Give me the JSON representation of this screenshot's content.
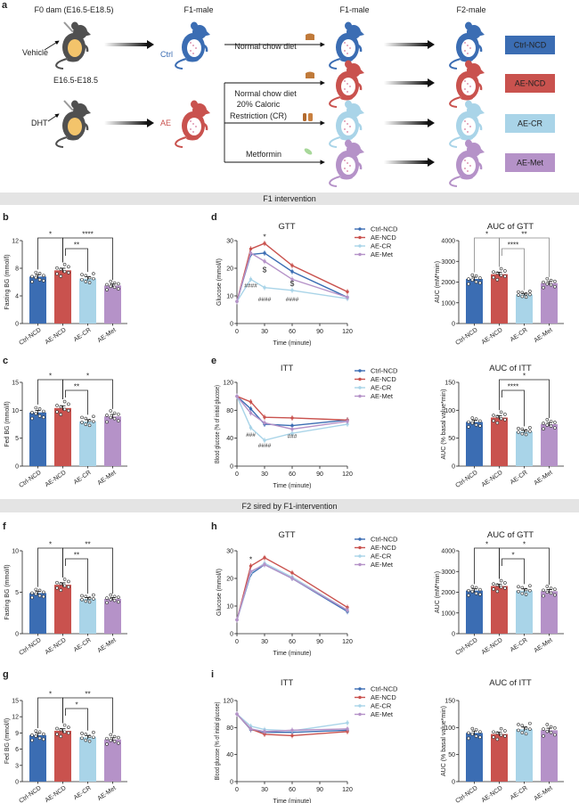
{
  "colors": {
    "Ctrl-NCD": "#3b6db3",
    "AE-NCD": "#c9524e",
    "AE-CR": "#a9d4e8",
    "AE-Met": "#b592c8",
    "F0": "#505050",
    "belly_F0": "#f3c46b"
  },
  "panel_a": {
    "letter": "a",
    "headers": [
      "F0 dam (E16.5-E18.5)",
      "F1-male",
      "F1-male",
      "F2-male"
    ],
    "vehicle": "Vehicle",
    "dht": "DHT",
    "window": "E16.5-E18.5",
    "ctrl": "Ctrl",
    "ae": "AE",
    "treatments": [
      "Normal chow diet",
      "Normal chow diet",
      "20% Caloric",
      "Restriction (CR)",
      "Metformin"
    ],
    "groups": [
      "Ctrl-NCD",
      "AE-NCD",
      "AE-CR",
      "AE-Met"
    ]
  },
  "bands": [
    "F1 intervention",
    "F2 sired by F1-intervention"
  ],
  "chart_data": [
    {
      "id": "b",
      "letter": "b",
      "type": "bar",
      "title": "",
      "ylabel": "Fasting BG (mmol/l)",
      "categories": [
        "Ctrl-NCD",
        "AE-NCD",
        "AE-CR",
        "AE-Met"
      ],
      "values": [
        6.8,
        7.7,
        6.5,
        5.5
      ],
      "ylim": [
        0,
        12
      ],
      "yticks": [
        0,
        4,
        8,
        12
      ],
      "sig_color": "#222",
      "sig": [
        [
          0,
          1,
          "*"
        ],
        [
          1,
          2,
          "**"
        ],
        [
          1,
          3,
          "****"
        ]
      ]
    },
    {
      "id": "d-gtt",
      "letter": "d",
      "type": "line",
      "title": "GTT",
      "xlabel": "Time (minute)",
      "ylabel": "Glucose (mmol/l)",
      "x": [
        0,
        15,
        30,
        60,
        120
      ],
      "xticks": [
        0,
        30,
        60,
        90,
        120
      ],
      "ylim": [
        0,
        30
      ],
      "yticks": [
        0,
        10,
        20,
        30
      ],
      "series": [
        {
          "name": "Ctrl-NCD",
          "values": [
            8,
            25,
            25.5,
            18.8,
            9.5
          ]
        },
        {
          "name": "AE-NCD",
          "values": [
            8,
            27,
            29,
            21,
            11.5
          ]
        },
        {
          "name": "AE-CR",
          "values": [
            8,
            16,
            13,
            12,
            9
          ]
        },
        {
          "name": "AE-Met",
          "values": [
            8,
            25.5,
            22.5,
            16,
            9.5
          ]
        }
      ],
      "annotations": [
        {
          "x": 30,
          "y": 30.5,
          "text": "*"
        },
        {
          "x": 30,
          "y": 18.5,
          "text": "$"
        },
        {
          "x": 60,
          "y": 13.5,
          "text": "$"
        },
        {
          "x": 15,
          "y": 13,
          "text": "####"
        },
        {
          "x": 30,
          "y": 8,
          "text": "####"
        },
        {
          "x": 60,
          "y": 8,
          "text": "####"
        }
      ]
    },
    {
      "id": "d-auc",
      "type": "bar",
      "title": "AUC of GTT",
      "ylabel": "AUC (mM*min)",
      "categories": [
        "Ctrl-NCD",
        "AE-NCD",
        "AE-CR",
        "AE-Met"
      ],
      "values": [
        2150,
        2380,
        1400,
        1950
      ],
      "ylim": [
        0,
        4000
      ],
      "yticks": [
        0,
        1000,
        2000,
        3000,
        4000
      ],
      "sig_color": "#888",
      "sig": [
        [
          0,
          1,
          "*"
        ],
        [
          1,
          2,
          "****"
        ],
        [
          1,
          3,
          "**"
        ]
      ]
    },
    {
      "id": "c",
      "letter": "c",
      "type": "bar",
      "title": "",
      "ylabel": "Fed BG (mmol/l)",
      "categories": [
        "Ctrl-NCD",
        "AE-NCD",
        "AE-CR",
        "AE-Met"
      ],
      "values": [
        9.6,
        10.4,
        8.0,
        8.9
      ],
      "ylim": [
        0,
        15
      ],
      "yticks": [
        0,
        5,
        10,
        15
      ],
      "sig_color": "#222",
      "sig": [
        [
          0,
          1,
          "*"
        ],
        [
          1,
          2,
          "**"
        ],
        [
          1,
          3,
          "*"
        ]
      ]
    },
    {
      "id": "e-itt",
      "letter": "e",
      "type": "line",
      "title": "ITT",
      "xlabel": "Time (minute)",
      "ylabel": "Blood glucose (% of initial glucose)",
      "x": [
        0,
        15,
        30,
        60,
        120
      ],
      "xticks": [
        0,
        30,
        60,
        90,
        120
      ],
      "ylim": [
        0,
        120
      ],
      "yticks": [
        0,
        40,
        80,
        120
      ],
      "series": [
        {
          "name": "Ctrl-NCD",
          "values": [
            100,
            82,
            60,
            58,
            66
          ]
        },
        {
          "name": "AE-NCD",
          "values": [
            100,
            92,
            70,
            69,
            66
          ]
        },
        {
          "name": "AE-CR",
          "values": [
            100,
            55,
            37,
            47,
            60
          ]
        },
        {
          "name": "AE-Met",
          "values": [
            100,
            76,
            62,
            53,
            64
          ]
        }
      ],
      "annotations": [
        {
          "x": 15,
          "y": 42,
          "text": "###"
        },
        {
          "x": 30,
          "y": 27,
          "text": "####"
        },
        {
          "x": 60,
          "y": 40,
          "text": "###"
        }
      ]
    },
    {
      "id": "e-auc",
      "type": "bar",
      "title": "AUC of ITT",
      "ylabel": "AUC (% basal value*min)",
      "categories": [
        "Ctrl-NCD",
        "AE-NCD",
        "AE-CR",
        "AE-Met"
      ],
      "values": [
        79,
        87,
        62,
        75
      ],
      "ylim": [
        0,
        150
      ],
      "yticks": [
        0,
        50,
        100,
        150
      ],
      "sig_color": "#222",
      "sig": [
        [
          1,
          2,
          "****"
        ],
        [
          1,
          3,
          "*"
        ]
      ]
    },
    {
      "id": "f",
      "letter": "f",
      "type": "bar",
      "title": "",
      "ylabel": "Fasting BG (mmol/l)",
      "categories": [
        "Ctrl-NCD",
        "AE-NCD",
        "AE-CR",
        "AE-Met"
      ],
      "values": [
        4.9,
        5.9,
        4.2,
        4.2
      ],
      "ylim": [
        0,
        10
      ],
      "yticks": [
        0,
        5,
        10
      ],
      "sig_color": "#222",
      "sig": [
        [
          0,
          1,
          "*"
        ],
        [
          1,
          2,
          "**"
        ],
        [
          1,
          3,
          "**"
        ]
      ]
    },
    {
      "id": "h-gtt",
      "letter": "h",
      "type": "line",
      "title": "GTT",
      "xlabel": "Time (minute)",
      "ylabel": "Glucose (mmol/l)",
      "x": [
        0,
        15,
        30,
        60,
        120
      ],
      "xticks": [
        0,
        30,
        60,
        90,
        120
      ],
      "ylim": [
        0,
        30
      ],
      "yticks": [
        0,
        10,
        20,
        30
      ],
      "series": [
        {
          "name": "Ctrl-NCD",
          "values": [
            5,
            21.5,
            25,
            20,
            8
          ]
        },
        {
          "name": "AE-NCD",
          "values": [
            5,
            24.5,
            27.5,
            22,
            9.5
          ]
        },
        {
          "name": "AE-CR",
          "values": [
            5,
            22,
            25.5,
            20.5,
            8.5
          ]
        },
        {
          "name": "AE-Met",
          "values": [
            5,
            22.5,
            25,
            20,
            8.5
          ]
        }
      ],
      "annotations": [
        {
          "x": 15,
          "y": 26,
          "text": "*"
        }
      ]
    },
    {
      "id": "h-auc",
      "type": "bar",
      "title": "AUC of GTT",
      "ylabel": "AUC (mM*min)",
      "categories": [
        "Ctrl-NCD",
        "AE-NCD",
        "AE-CR",
        "AE-Met"
      ],
      "values": [
        2080,
        2300,
        2080,
        2050
      ],
      "ylim": [
        0,
        4000
      ],
      "yticks": [
        0,
        1000,
        2000,
        3000,
        4000
      ],
      "sig_color": "#222",
      "sig": [
        [
          0,
          1,
          "*"
        ],
        [
          1,
          2,
          "*"
        ],
        [
          1,
          3,
          "*"
        ]
      ]
    },
    {
      "id": "g",
      "letter": "g",
      "type": "bar",
      "title": "",
      "ylabel": "Fed BG (mmol/l)",
      "categories": [
        "Ctrl-NCD",
        "AE-NCD",
        "AE-CR",
        "AE-Met"
      ],
      "values": [
        8.6,
        9.4,
        8.2,
        7.8
      ],
      "ylim": [
        0,
        15
      ],
      "yticks": [
        0,
        3,
        6,
        9,
        12,
        15
      ],
      "sig_color": "#222",
      "sig": [
        [
          0,
          1,
          "*"
        ],
        [
          1,
          2,
          "*"
        ],
        [
          1,
          3,
          "**"
        ]
      ]
    },
    {
      "id": "i-itt",
      "letter": "i",
      "type": "line",
      "title": "ITT",
      "xlabel": "Time (minute)",
      "ylabel": "Blood glucose (% of initial glucose)",
      "x": [
        0,
        15,
        30,
        60,
        120
      ],
      "xticks": [
        0,
        30,
        60,
        90,
        120
      ],
      "ylim": [
        0,
        120
      ],
      "yticks": [
        0,
        40,
        80,
        120
      ],
      "series": [
        {
          "name": "Ctrl-NCD",
          "values": [
            100,
            77,
            73,
            73,
            76
          ]
        },
        {
          "name": "AE-NCD",
          "values": [
            100,
            78,
            70,
            68,
            74
          ]
        },
        {
          "name": "AE-CR",
          "values": [
            100,
            82,
            77,
            75,
            87
          ]
        },
        {
          "name": "AE-Met",
          "values": [
            100,
            78,
            74,
            76,
            78
          ]
        }
      ],
      "annotations": []
    },
    {
      "id": "i-auc",
      "type": "bar",
      "title": "AUC of ITT",
      "ylabel": "AUC (% basal value*min)",
      "categories": [
        "Ctrl-NCD",
        "AE-NCD",
        "AE-CR",
        "AE-Met"
      ],
      "values": [
        90,
        88,
        97,
        95
      ],
      "ylim": [
        0,
        150
      ],
      "yticks": [
        0,
        50,
        100,
        150
      ],
      "sig_color": "#222",
      "sig": []
    }
  ]
}
